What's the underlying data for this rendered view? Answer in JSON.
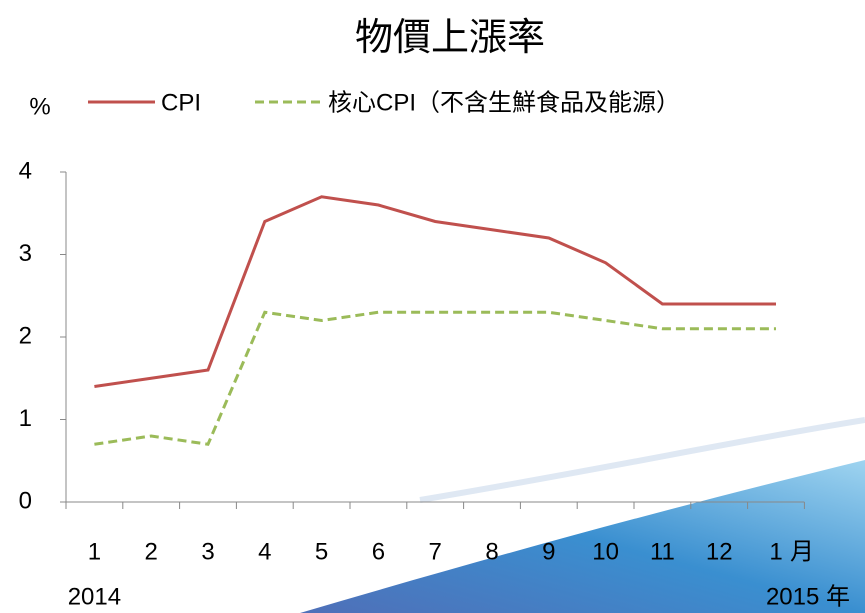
{
  "chart_data": {
    "type": "line",
    "title": "物價上漲率",
    "y_unit": "%",
    "categories": [
      "1",
      "2",
      "3",
      "4",
      "5",
      "6",
      "7",
      "8",
      "9",
      "10",
      "11",
      "12",
      "1"
    ],
    "x_unit": "月",
    "year_start": "2014",
    "year_end": "2015 年",
    "series": [
      {
        "name": "CPI",
        "color": "#c0504d",
        "dash": false,
        "values": [
          1.4,
          1.5,
          1.6,
          3.4,
          3.7,
          3.6,
          3.4,
          3.3,
          3.2,
          2.9,
          2.4,
          2.4,
          2.4
        ]
      },
      {
        "name": "核心CPI（不含生鮮食品及能源）",
        "color": "#9bbb59",
        "dash": true,
        "values": [
          0.7,
          0.8,
          0.7,
          2.3,
          2.2,
          2.3,
          2.3,
          2.3,
          2.3,
          2.2,
          2.1,
          2.1,
          2.1
        ]
      }
    ],
    "ylim": [
      0,
      4
    ],
    "yticks": [
      0,
      1,
      2,
      3,
      4
    ],
    "grid": false
  }
}
